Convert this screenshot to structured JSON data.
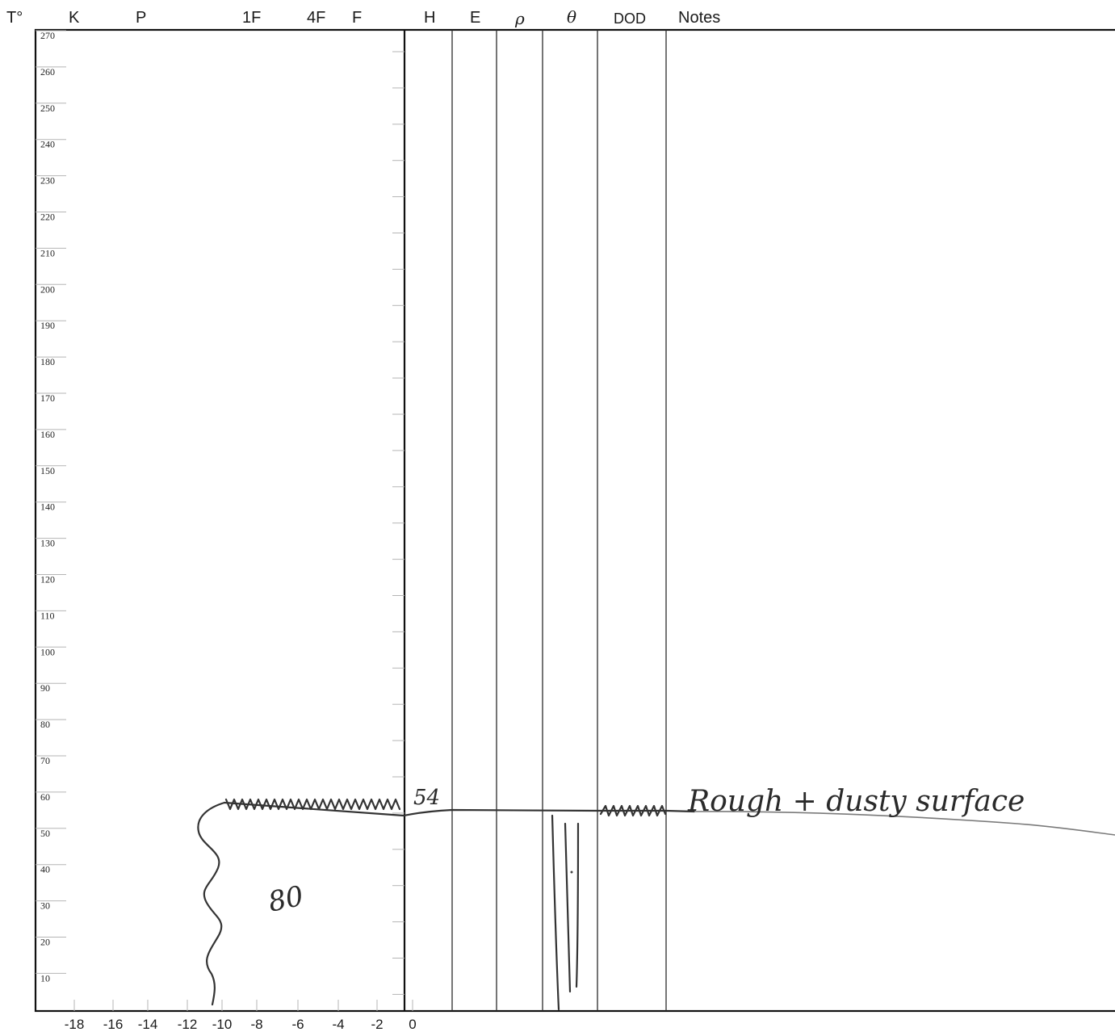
{
  "header": {
    "t_label": "T°",
    "columns": [
      "K",
      "P",
      "1F",
      "4F",
      "F",
      "H",
      "E",
      "ρ",
      "θ",
      "DOD",
      "Notes"
    ]
  },
  "temperature_axis": {
    "ticks": [
      270,
      260,
      250,
      240,
      230,
      220,
      210,
      200,
      190,
      180,
      170,
      160,
      150,
      140,
      130,
      120,
      110,
      100,
      90,
      80,
      70,
      60,
      50,
      40,
      30,
      20,
      10
    ]
  },
  "bottom_axis": {
    "ticks": [
      "-18",
      "-16",
      "-14",
      "-12",
      "-10",
      "-8",
      "-6",
      "-4",
      "-2",
      "0"
    ]
  },
  "annotations": {
    "level_value": "54",
    "aspect_mark": "80",
    "note": "Rough + dusty surface"
  },
  "chart_data": {
    "type": "line",
    "surface_temperature": 54,
    "ylim": [
      0,
      270
    ],
    "note": "Rough + dusty surface"
  }
}
